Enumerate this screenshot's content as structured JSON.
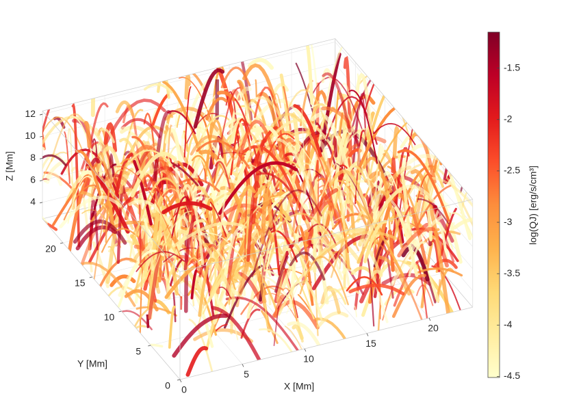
{
  "chart_data": {
    "type": "volume3d",
    "xlabel": "X [Mm]",
    "ylabel": "Y [Mm]",
    "zlabel": "Z [Mm]",
    "xlim": [
      0,
      23.5
    ],
    "ylim": [
      0,
      23.5
    ],
    "zlim": [
      2.5,
      12.3
    ],
    "xticks": [
      0,
      5,
      10,
      15,
      20
    ],
    "yticks": [
      0,
      5,
      10,
      15,
      20
    ],
    "zticks": [
      4,
      6,
      8,
      10,
      12
    ],
    "grid": true,
    "colorbar": {
      "label": "log(QJ) [erg/s/cm³]",
      "lim": [
        -4.51,
        -1.15
      ],
      "ticks": [
        -4.5,
        -4,
        -3.5,
        -3,
        -2.5,
        -2,
        -1.5
      ],
      "colormap": [
        "#ffffcc",
        "#ffeda0",
        "#fed976",
        "#feb24c",
        "#fd8d3c",
        "#fc4e2a",
        "#e31a1c",
        "#bd0026",
        "#800026"
      ]
    }
  }
}
